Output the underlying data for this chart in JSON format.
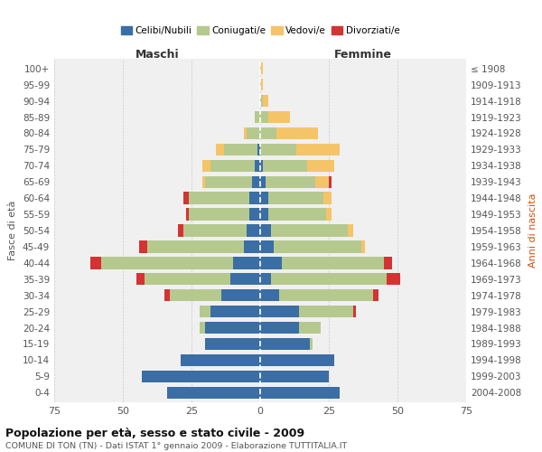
{
  "age_groups": [
    "0-4",
    "5-9",
    "10-14",
    "15-19",
    "20-24",
    "25-29",
    "30-34",
    "35-39",
    "40-44",
    "45-49",
    "50-54",
    "55-59",
    "60-64",
    "65-69",
    "70-74",
    "75-79",
    "80-84",
    "85-89",
    "90-94",
    "95-99",
    "100+"
  ],
  "birth_years": [
    "2004-2008",
    "1999-2003",
    "1994-1998",
    "1989-1993",
    "1984-1988",
    "1979-1983",
    "1974-1978",
    "1969-1973",
    "1964-1968",
    "1959-1963",
    "1954-1958",
    "1949-1953",
    "1944-1948",
    "1939-1943",
    "1934-1938",
    "1929-1933",
    "1924-1928",
    "1919-1923",
    "1914-1918",
    "1909-1913",
    "≤ 1908"
  ],
  "colors": {
    "celibi": "#3a6ea5",
    "coniugati": "#b5c98e",
    "vedovi": "#f5c469",
    "divorziati": "#d43333",
    "background": "#f0f0f0",
    "grid": "#cccccc"
  },
  "maschi": {
    "celibi": [
      34,
      43,
      29,
      20,
      20,
      18,
      14,
      11,
      10,
      6,
      5,
      4,
      4,
      3,
      2,
      1,
      0,
      0,
      0,
      0,
      0
    ],
    "coniugati": [
      0,
      0,
      0,
      0,
      2,
      4,
      19,
      31,
      48,
      35,
      23,
      22,
      22,
      17,
      16,
      12,
      5,
      2,
      0,
      0,
      0
    ],
    "vedovi": [
      0,
      0,
      0,
      0,
      0,
      0,
      0,
      0,
      0,
      0,
      0,
      0,
      0,
      1,
      3,
      3,
      1,
      0,
      0,
      0,
      0
    ],
    "divorziati": [
      0,
      0,
      0,
      0,
      0,
      0,
      2,
      3,
      4,
      3,
      2,
      1,
      2,
      0,
      0,
      0,
      0,
      0,
      0,
      0,
      0
    ]
  },
  "femmine": {
    "celibi": [
      29,
      25,
      27,
      18,
      14,
      14,
      7,
      4,
      8,
      5,
      4,
      3,
      3,
      2,
      1,
      0,
      0,
      0,
      0,
      0,
      0
    ],
    "coniugati": [
      0,
      0,
      0,
      1,
      8,
      20,
      34,
      42,
      37,
      32,
      28,
      21,
      20,
      18,
      16,
      13,
      6,
      3,
      1,
      0,
      0
    ],
    "vedovi": [
      0,
      0,
      0,
      0,
      0,
      0,
      0,
      0,
      0,
      1,
      2,
      2,
      3,
      5,
      10,
      16,
      15,
      8,
      2,
      1,
      1
    ],
    "divorziati": [
      0,
      0,
      0,
      0,
      0,
      1,
      2,
      5,
      3,
      0,
      0,
      0,
      0,
      1,
      0,
      0,
      0,
      0,
      0,
      0,
      0
    ]
  },
  "title": "Popolazione per età, sesso e stato civile - 2009",
  "subtitle": "COMUNE DI TON (TN) - Dati ISTAT 1° gennaio 2009 - Elaborazione TUTTITALIA.IT",
  "xlabel_left": "Maschi",
  "xlabel_right": "Femmine",
  "ylabel_left": "Fasce di età",
  "ylabel_right": "Anni di nascita",
  "xlim": 75
}
